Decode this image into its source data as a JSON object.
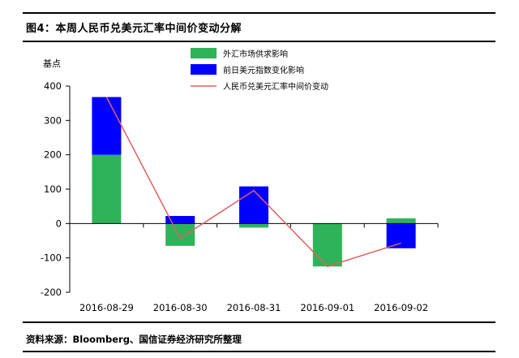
{
  "chart_data": {
    "type": "bar",
    "title": "图4：本周人民币兑美元汇率中间价变动分解",
    "source": "资料来源：Bloomberg、国信证券经济研究所整理",
    "ylabel": "基点",
    "ylim": [
      -200,
      400
    ],
    "yticks": [
      "400",
      "300",
      "200",
      "100",
      "0",
      "-100",
      "-200"
    ],
    "categories": [
      "2016-08-29",
      "2016-08-30",
      "2016-08-31",
      "2016-09-01",
      "2016-09-02"
    ],
    "stacked": true,
    "series": [
      {
        "name": "外汇市场供求影响",
        "kind": "bar",
        "color": "#2eb359",
        "values": [
          200,
          -65,
          -12,
          -125,
          15
        ]
      },
      {
        "name": "前日美元指数变化影响",
        "kind": "bar",
        "color": "#0000ff",
        "values": [
          168,
          22,
          108,
          0,
          -72
        ]
      },
      {
        "name": "人民币兑美元汇率中间价变动",
        "kind": "line",
        "color": "#e06060",
        "values": [
          368,
          -43,
          96,
          -125,
          -57
        ]
      }
    ],
    "legend_position": "top-right",
    "grid": false
  }
}
